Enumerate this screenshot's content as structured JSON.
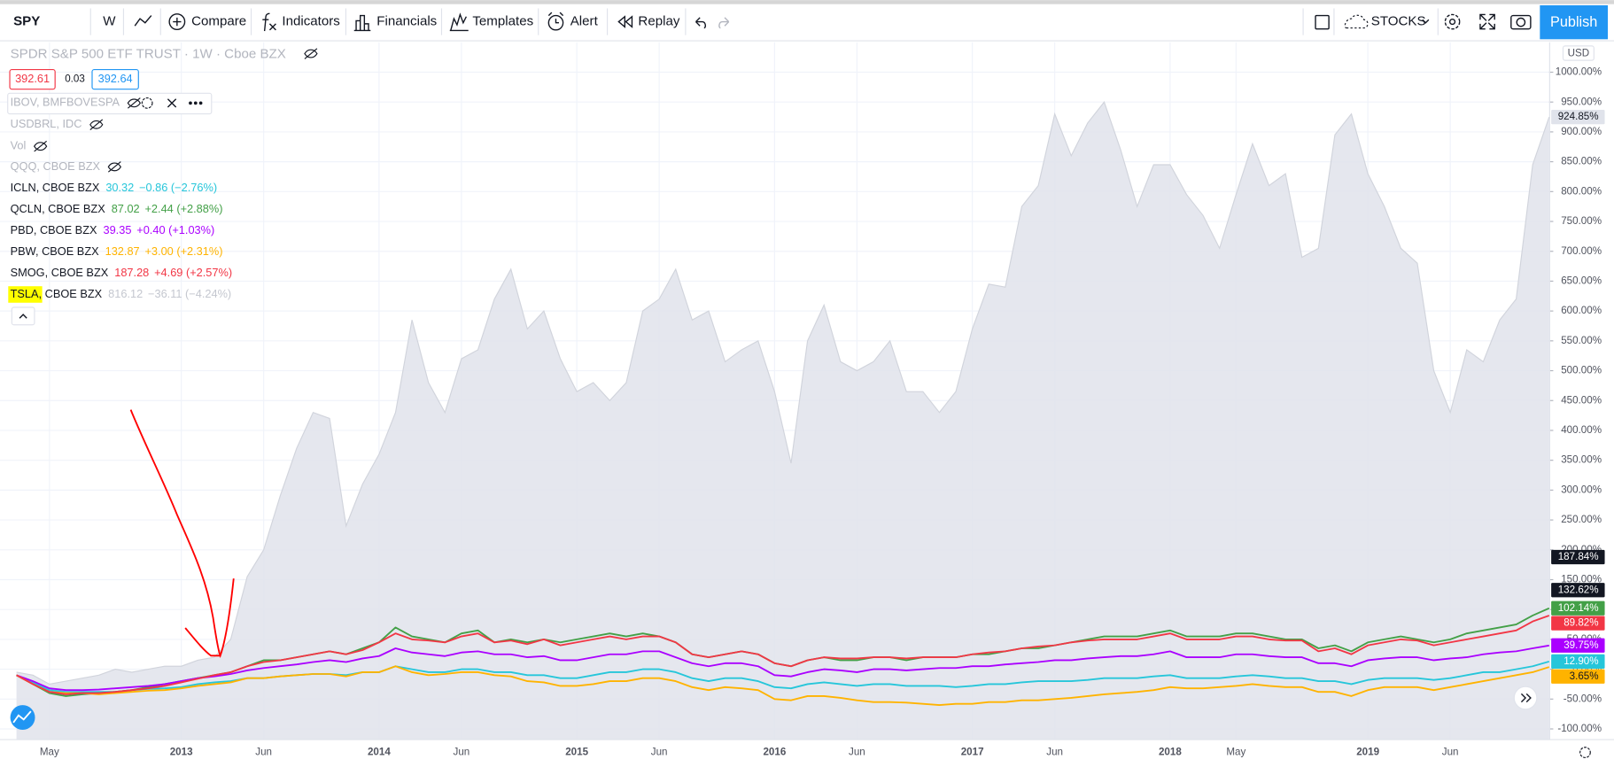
{
  "toolbar": {
    "symbol": "SPY",
    "interval": "W",
    "buttons": [
      "Compare",
      "Indicators",
      "Financials",
      "Templates",
      "Alert",
      "Replay"
    ],
    "layout": "STOCKS",
    "publish": "Publish"
  },
  "header": {
    "title": "SPDR S&P 500 ETF TRUST · 1W · Cboe BZX",
    "bid": "392.61",
    "spread": "0.03",
    "ask": "392.64",
    "currency": "USD"
  },
  "hidden_studies": [
    "IBOV, BMFBOVESPA",
    "USDBRL, IDC",
    "Vol",
    "QQQ, CBOE BZX"
  ],
  "chart_data": {
    "type": "line",
    "categories": [
      null,
      null,
      "May",
      null,
      null,
      null,
      null,
      null,
      null,
      null,
      "2013",
      null,
      null,
      null,
      null,
      "Jun",
      null,
      null,
      null,
      null,
      null,
      null,
      "2014",
      null,
      null,
      null,
      null,
      "Jun",
      null,
      null,
      null,
      null,
      null,
      null,
      "2015",
      null,
      null,
      null,
      null,
      "Jun",
      null,
      null,
      null,
      null,
      null,
      null,
      "2016",
      null,
      null,
      null,
      null,
      "Jun",
      null,
      null,
      null,
      null,
      null,
      null,
      "2017",
      null,
      null,
      null,
      null,
      "Jun",
      null,
      null,
      null,
      null,
      null,
      null,
      "2018",
      null,
      null,
      null,
      "May",
      null,
      null,
      null,
      null,
      null,
      null,
      null,
      "2019",
      null,
      null,
      null,
      null,
      "Jun",
      null,
      null,
      null,
      null,
      null,
      null
    ],
    "ylim": [
      -117,
      1050
    ],
    "yticks": [
      {
        "value": -100,
        "label": "-100.00%"
      },
      {
        "value": -50,
        "label": "-50.00%"
      },
      {
        "value": 0,
        "label": "0.00%"
      },
      {
        "value": 50,
        "label": "50.00%"
      },
      {
        "value": 100,
        "label": "100.00%"
      },
      {
        "value": 150,
        "label": "150.00%"
      },
      {
        "value": 200,
        "label": "200.00%"
      },
      {
        "value": 250,
        "label": "250.00%"
      },
      {
        "value": 300,
        "label": "300.00%"
      },
      {
        "value": 350,
        "label": "350.00%"
      },
      {
        "value": 400,
        "label": "400.00%"
      },
      {
        "value": 450,
        "label": "450.00%"
      },
      {
        "value": 500,
        "label": "500.00%"
      },
      {
        "value": 550,
        "label": "550.00%"
      },
      {
        "value": 600,
        "label": "600.00%"
      },
      {
        "value": 650,
        "label": "650.00%"
      },
      {
        "value": 700,
        "label": "700.00%"
      },
      {
        "value": 750,
        "label": "750.00%"
      },
      {
        "value": 800,
        "label": "800.00%"
      },
      {
        "value": 850,
        "label": "850.00%"
      },
      {
        "value": 900,
        "label": "900.00%"
      },
      {
        "value": 950,
        "label": "950.00%"
      },
      {
        "value": 1000,
        "label": "1000.00%"
      }
    ],
    "grid": true,
    "series": [
      {
        "name": "TSLA, CBOE BZX",
        "last": "816.12",
        "change": "−36.11 (−4.24%)",
        "style": "area",
        "color": "#b2b5be",
        "end_label": "924.85%",
        "values": [
          -5,
          -10,
          -25,
          -20,
          -15,
          -10,
          0,
          -5,
          0,
          5,
          5,
          15,
          20,
          50,
          155,
          200,
          290,
          370,
          430,
          420,
          240,
          310,
          360,
          430,
          585,
          480,
          430,
          520,
          535,
          620,
          670,
          570,
          600,
          520,
          465,
          480,
          450,
          480,
          600,
          620,
          670,
          585,
          600,
          515,
          535,
          550,
          465,
          345,
          550,
          610,
          515,
          500,
          515,
          550,
          465,
          465,
          430,
          465,
          570,
          645,
          640,
          775,
          810,
          930,
          860,
          915,
          950,
          870,
          775,
          845,
          845,
          795,
          760,
          705,
          795,
          880,
          810,
          830,
          690,
          705,
          895,
          930,
          830,
          775,
          705,
          680,
          500,
          430,
          535,
          515,
          585,
          620,
          845,
          924.85
        ]
      },
      {
        "name": "ICLN, CBOE BZX",
        "last": "30.32",
        "change": "−0.86 (−2.76%)",
        "color": "#26c6da",
        "end_label": "12.90%",
        "values": [
          -10,
          -22,
          -35,
          -38,
          -38,
          -38,
          -38,
          -35,
          -33,
          -32,
          -30,
          -25,
          -22,
          -20,
          -15,
          -15,
          -12,
          -10,
          -8,
          -8,
          -10,
          -5,
          -5,
          5,
          0,
          -5,
          -5,
          0,
          0,
          -5,
          -5,
          -10,
          -10,
          -15,
          -15,
          -10,
          -5,
          -5,
          0,
          0,
          -5,
          -15,
          -20,
          -15,
          -15,
          -20,
          -30,
          -32,
          -25,
          -22,
          -25,
          -28,
          -25,
          -25,
          -28,
          -28,
          -28,
          -30,
          -28,
          -25,
          -25,
          -22,
          -20,
          -20,
          -20,
          -18,
          -15,
          -15,
          -15,
          -12,
          -10,
          -15,
          -15,
          -15,
          -12,
          -10,
          -12,
          -15,
          -15,
          -20,
          -20,
          -25,
          -18,
          -15,
          -15,
          -15,
          -18,
          -15,
          -10,
          -5,
          -5,
          0,
          5,
          12.9
        ]
      },
      {
        "name": "QCLN, CBOE BZX",
        "last": "87.02",
        "change": "+2.44 (+2.88%)",
        "color": "#43a047",
        "end_label": "102.14%",
        "values": [
          -10,
          -25,
          -40,
          -45,
          -42,
          -40,
          -38,
          -35,
          -30,
          -25,
          -20,
          -15,
          -10,
          -5,
          5,
          15,
          15,
          20,
          25,
          30,
          25,
          35,
          45,
          70,
          55,
          50,
          45,
          60,
          65,
          45,
          50,
          45,
          50,
          45,
          50,
          55,
          60,
          55,
          60,
          55,
          45,
          25,
          20,
          25,
          30,
          25,
          10,
          5,
          15,
          20,
          15,
          15,
          20,
          20,
          15,
          20,
          20,
          20,
          25,
          25,
          30,
          35,
          35,
          40,
          45,
          50,
          55,
          55,
          55,
          60,
          65,
          55,
          55,
          55,
          60,
          60,
          55,
          50,
          50,
          35,
          40,
          30,
          45,
          50,
          55,
          50,
          45,
          50,
          60,
          65,
          70,
          75,
          90,
          102.14
        ]
      },
      {
        "name": "PBD, CBOE BZX",
        "last": "39.35",
        "change": "+0.40 (+1.03%)",
        "color": "#aa00ff",
        "end_label": "39.75%",
        "values": [
          -10,
          -20,
          -32,
          -35,
          -35,
          -34,
          -32,
          -30,
          -28,
          -25,
          -20,
          -15,
          -12,
          -8,
          -2,
          2,
          5,
          8,
          12,
          15,
          12,
          18,
          22,
          35,
          28,
          25,
          22,
          28,
          30,
          25,
          25,
          20,
          22,
          15,
          15,
          20,
          25,
          25,
          30,
          30,
          20,
          10,
          5,
          10,
          10,
          5,
          -10,
          -12,
          -5,
          0,
          -2,
          -5,
          0,
          0,
          -2,
          0,
          2,
          2,
          5,
          5,
          8,
          10,
          12,
          15,
          15,
          18,
          20,
          22,
          22,
          25,
          30,
          20,
          20,
          20,
          25,
          25,
          22,
          20,
          20,
          10,
          10,
          5,
          15,
          18,
          20,
          20,
          15,
          18,
          20,
          25,
          28,
          30,
          35,
          39.75
        ]
      },
      {
        "name": "PBW, CBOE BZX",
        "last": "132.87",
        "change": "+3.00 (+2.31%)",
        "color": "#ffb300",
        "end_label": "3.65%",
        "values": [
          -10,
          -25,
          -38,
          -40,
          -40,
          -42,
          -40,
          -38,
          -36,
          -35,
          -32,
          -28,
          -25,
          -22,
          -15,
          -15,
          -12,
          -10,
          -8,
          -8,
          -12,
          -5,
          -5,
          5,
          -5,
          -10,
          -8,
          -5,
          -5,
          -10,
          -12,
          -20,
          -22,
          -28,
          -28,
          -25,
          -20,
          -20,
          -15,
          -15,
          -20,
          -30,
          -35,
          -30,
          -32,
          -35,
          -50,
          -52,
          -45,
          -45,
          -48,
          -52,
          -55,
          -55,
          -56,
          -58,
          -60,
          -58,
          -58,
          -55,
          -55,
          -52,
          -52,
          -50,
          -48,
          -45,
          -42,
          -40,
          -38,
          -35,
          -30,
          -32,
          -32,
          -30,
          -28,
          -25,
          -28,
          -30,
          -30,
          -38,
          -38,
          -45,
          -35,
          -30,
          -30,
          -30,
          -35,
          -30,
          -25,
          -20,
          -15,
          -10,
          -5,
          3.65
        ]
      },
      {
        "name": "SMOG, CBOE BZX",
        "last": "187.28",
        "change": "+4.69 (+2.57%)",
        "color": "#f23645",
        "end_label": "89.82%",
        "values": [
          -10,
          -25,
          -38,
          -42,
          -40,
          -40,
          -38,
          -35,
          -32,
          -28,
          -22,
          -16,
          -10,
          -5,
          5,
          12,
          15,
          20,
          25,
          30,
          25,
          32,
          45,
          60,
          50,
          48,
          45,
          55,
          60,
          45,
          48,
          42,
          50,
          40,
          45,
          50,
          55,
          50,
          55,
          55,
          45,
          25,
          20,
          25,
          30,
          25,
          10,
          5,
          15,
          20,
          18,
          18,
          20,
          20,
          18,
          20,
          20,
          20,
          25,
          28,
          30,
          35,
          38,
          40,
          45,
          48,
          50,
          50,
          50,
          55,
          60,
          50,
          50,
          50,
          55,
          55,
          50,
          48,
          48,
          30,
          35,
          25,
          40,
          45,
          50,
          48,
          40,
          45,
          50,
          55,
          60,
          65,
          80,
          89.82
        ]
      }
    ],
    "price_labels": [
      {
        "value": 187.84,
        "label": "187.84%"
      },
      {
        "value": 132.62,
        "label": "132.62%"
      }
    ]
  }
}
